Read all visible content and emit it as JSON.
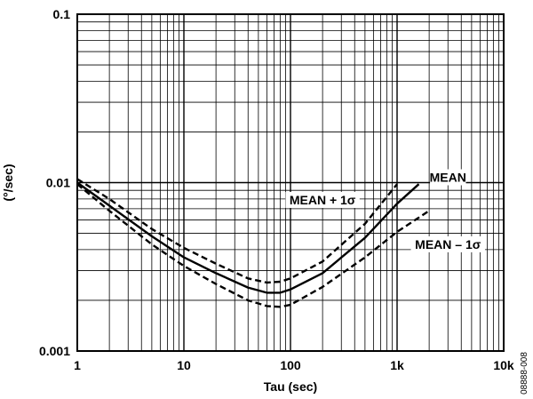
{
  "figure_id": "08888-008",
  "chart_data": {
    "type": "line",
    "xscale": "log",
    "yscale": "log",
    "xlabel": "Tau (sec)",
    "ylabel": "(°/sec)",
    "xlim": [
      1,
      10000
    ],
    "ylim": [
      0.001,
      0.1
    ],
    "xticks": [
      1,
      10,
      100,
      1000,
      10000
    ],
    "xtick_labels": [
      "1",
      "10",
      "100",
      "1k",
      "10k"
    ],
    "yticks": [
      0.001,
      0.01,
      0.1
    ],
    "ytick_labels": [
      "0.001",
      "0.01",
      "0.1"
    ],
    "grid": true,
    "series": [
      {
        "name": "MEAN",
        "style": "solid",
        "x": [
          1,
          2,
          5,
          10,
          20,
          40,
          60,
          80,
          100,
          200,
          500,
          1000,
          1600
        ],
        "y": [
          0.01,
          0.0073,
          0.0048,
          0.0036,
          0.0029,
          0.00238,
          0.00222,
          0.00222,
          0.00232,
          0.0029,
          0.0047,
          0.0075,
          0.0098
        ]
      },
      {
        "name": "MEAN + 1σ",
        "style": "dashed",
        "x": [
          1,
          2,
          5,
          10,
          20,
          40,
          60,
          80,
          100,
          200,
          500,
          1000
        ],
        "y": [
          0.0105,
          0.008,
          0.0053,
          0.0041,
          0.0033,
          0.0027,
          0.00255,
          0.00258,
          0.0027,
          0.0034,
          0.0057,
          0.0098
        ]
      },
      {
        "name": "MEAN – 1σ",
        "style": "dashed",
        "x": [
          1,
          2,
          5,
          10,
          20,
          40,
          60,
          80,
          100,
          200,
          500,
          1000,
          2000
        ],
        "y": [
          0.0098,
          0.0068,
          0.0043,
          0.0032,
          0.0025,
          0.002,
          0.00185,
          0.00183,
          0.00188,
          0.0024,
          0.0036,
          0.0051,
          0.0068
        ]
      }
    ],
    "annotations": [
      {
        "text": "MEAN",
        "x": 3000,
        "y": 0.0105
      },
      {
        "text": "MEAN + 1σ",
        "x": 200,
        "y": 0.0077
      },
      {
        "text": "MEAN – 1σ",
        "x": 3000,
        "y": 0.0042
      }
    ]
  }
}
